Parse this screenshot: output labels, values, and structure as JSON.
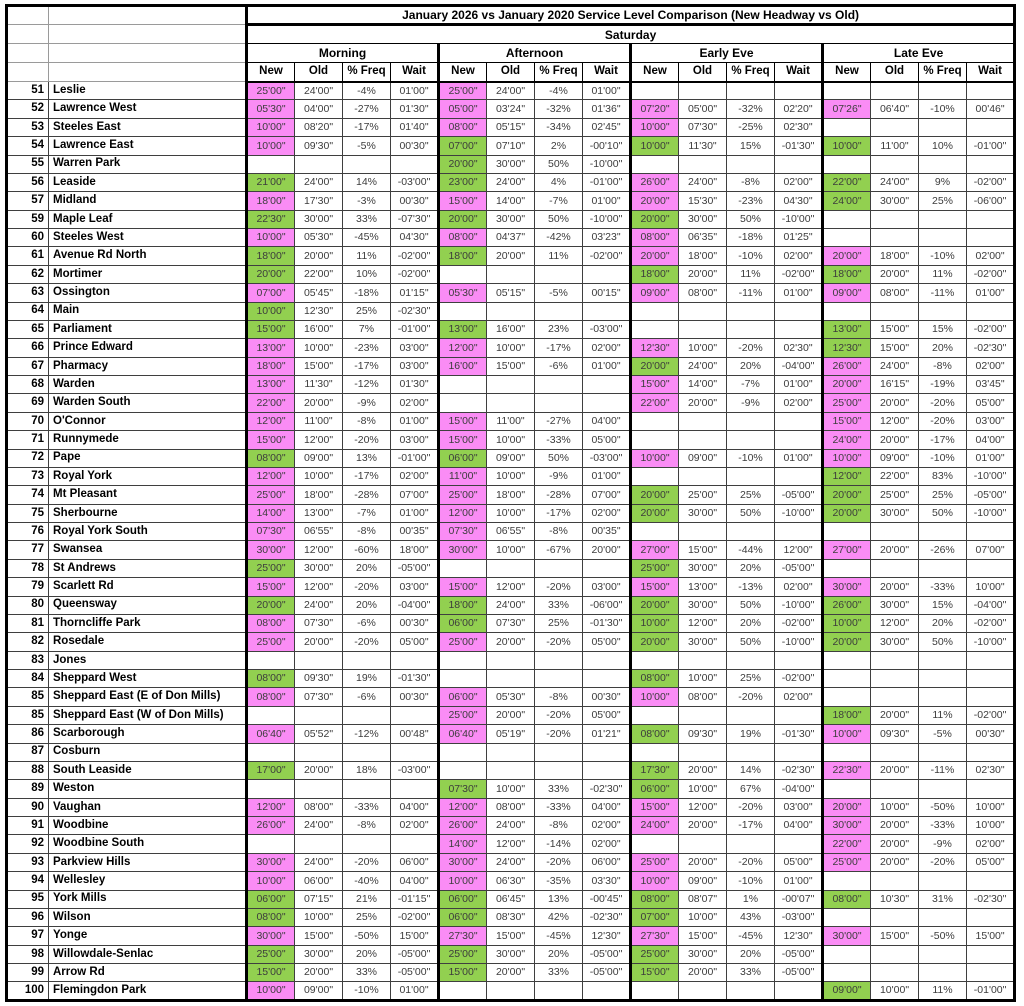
{
  "title": "January 2026 vs January 2020 Service Level Comparison (New Headway vs Old)",
  "day": "Saturday",
  "periods": [
    "Morning",
    "Afternoon",
    "Early Eve",
    "Late Eve"
  ],
  "metric_headers": [
    "New",
    "Old",
    "% Freq",
    "Wait"
  ],
  "colors": {
    "headway_worse_fill": "#FA8CF5",
    "headway_better_fill": "#92D050"
  },
  "rows": [
    {
      "route": "51",
      "name": "Leslie",
      "cells": [
        "25'00\"",
        "24'00\"",
        "-4%",
        "01'00\"",
        "25'00\"",
        "24'00\"",
        "-4%",
        "01'00\"",
        "",
        "",
        "",
        "",
        "",
        "",
        "",
        ""
      ]
    },
    {
      "route": "52",
      "name": "Lawrence West",
      "cells": [
        "05'30\"",
        "04'00\"",
        "-27%",
        "01'30\"",
        "05'00\"",
        "03'24\"",
        "-32%",
        "01'36\"",
        "07'20\"",
        "05'00\"",
        "-32%",
        "02'20\"",
        "07'26\"",
        "06'40\"",
        "-10%",
        "00'46\""
      ]
    },
    {
      "route": "53",
      "name": "Steeles East",
      "cells": [
        "10'00\"",
        "08'20\"",
        "-17%",
        "01'40\"",
        "08'00\"",
        "05'15\"",
        "-34%",
        "02'45\"",
        "10'00\"",
        "07'30\"",
        "-25%",
        "02'30\"",
        "",
        "",
        "",
        ""
      ]
    },
    {
      "route": "54",
      "name": "Lawrence East",
      "cells": [
        "10'00\"",
        "09'30\"",
        "-5%",
        "00'30\"",
        "07'00\"",
        "07'10\"",
        "2%",
        "-00'10\"",
        "10'00\"",
        "11'30\"",
        "15%",
        "-01'30\"",
        "10'00\"",
        "11'00\"",
        "10%",
        "-01'00\""
      ]
    },
    {
      "route": "55",
      "name": "Warren Park",
      "cells": [
        "",
        "",
        "",
        "",
        "20'00\"",
        "30'00\"",
        "50%",
        "-10'00\"",
        "",
        "",
        "",
        "",
        "",
        "",
        "",
        ""
      ]
    },
    {
      "route": "56",
      "name": "Leaside",
      "cells": [
        "21'00\"",
        "24'00\"",
        "14%",
        "-03'00\"",
        "23'00\"",
        "24'00\"",
        "4%",
        "-01'00\"",
        "26'00\"",
        "24'00\"",
        "-8%",
        "02'00\"",
        "22'00\"",
        "24'00\"",
        "9%",
        "-02'00\""
      ]
    },
    {
      "route": "57",
      "name": "Midland",
      "cells": [
        "18'00\"",
        "17'30\"",
        "-3%",
        "00'30\"",
        "15'00\"",
        "14'00\"",
        "-7%",
        "01'00\"",
        "20'00\"",
        "15'30\"",
        "-23%",
        "04'30\"",
        "24'00\"",
        "30'00\"",
        "25%",
        "-06'00\""
      ]
    },
    {
      "route": "59",
      "name": "Maple Leaf",
      "cells": [
        "22'30\"",
        "30'00\"",
        "33%",
        "-07'30\"",
        "20'00\"",
        "30'00\"",
        "50%",
        "-10'00\"",
        "20'00\"",
        "30'00\"",
        "50%",
        "-10'00\"",
        "",
        "",
        "",
        ""
      ]
    },
    {
      "route": "60",
      "name": "Steeles West",
      "cells": [
        "10'00\"",
        "05'30\"",
        "-45%",
        "04'30\"",
        "08'00\"",
        "04'37\"",
        "-42%",
        "03'23\"",
        "08'00\"",
        "06'35\"",
        "-18%",
        "01'25\"",
        "",
        "",
        "",
        ""
      ]
    },
    {
      "route": "61",
      "name": "Avenue Rd North",
      "cells": [
        "18'00\"",
        "20'00\"",
        "11%",
        "-02'00\"",
        "18'00\"",
        "20'00\"",
        "11%",
        "-02'00\"",
        "20'00\"",
        "18'00\"",
        "-10%",
        "02'00\"",
        "20'00\"",
        "18'00\"",
        "-10%",
        "02'00\""
      ]
    },
    {
      "route": "62",
      "name": "Mortimer",
      "cells": [
        "20'00\"",
        "22'00\"",
        "10%",
        "-02'00\"",
        "",
        "",
        "",
        "",
        "18'00\"",
        "20'00\"",
        "11%",
        "-02'00\"",
        "18'00\"",
        "20'00\"",
        "11%",
        "-02'00\""
      ]
    },
    {
      "route": "63",
      "name": "Ossington",
      "cells": [
        "07'00\"",
        "05'45\"",
        "-18%",
        "01'15\"",
        "05'30\"",
        "05'15\"",
        "-5%",
        "00'15\"",
        "09'00\"",
        "08'00\"",
        "-11%",
        "01'00\"",
        "09'00\"",
        "08'00\"",
        "-11%",
        "01'00\""
      ]
    },
    {
      "route": "64",
      "name": "Main",
      "cells": [
        "10'00\"",
        "12'30\"",
        "25%",
        "-02'30\"",
        "",
        "",
        "",
        "",
        "",
        "",
        "",
        "",
        "",
        "",
        "",
        ""
      ]
    },
    {
      "route": "65",
      "name": "Parliament",
      "cells": [
        "15'00\"",
        "16'00\"",
        "7%",
        "-01'00\"",
        "13'00\"",
        "16'00\"",
        "23%",
        "-03'00\"",
        "",
        "",
        "",
        "",
        "13'00\"",
        "15'00\"",
        "15%",
        "-02'00\""
      ]
    },
    {
      "route": "66",
      "name": "Prince Edward",
      "cells": [
        "13'00\"",
        "10'00\"",
        "-23%",
        "03'00\"",
        "12'00\"",
        "10'00\"",
        "-17%",
        "02'00\"",
        "12'30\"",
        "10'00\"",
        "-20%",
        "02'30\"",
        "12'30\"",
        "15'00\"",
        "20%",
        "-02'30\""
      ]
    },
    {
      "route": "67",
      "name": "Pharmacy",
      "cells": [
        "18'00\"",
        "15'00\"",
        "-17%",
        "03'00\"",
        "16'00\"",
        "15'00\"",
        "-6%",
        "01'00\"",
        "20'00\"",
        "24'00\"",
        "20%",
        "-04'00\"",
        "26'00\"",
        "24'00\"",
        "-8%",
        "02'00\""
      ]
    },
    {
      "route": "68",
      "name": "Warden",
      "cells": [
        "13'00\"",
        "11'30\"",
        "-12%",
        "01'30\"",
        "",
        "",
        "",
        "",
        "15'00\"",
        "14'00\"",
        "-7%",
        "01'00\"",
        "20'00\"",
        "16'15\"",
        "-19%",
        "03'45\""
      ]
    },
    {
      "route": "69",
      "name": "Warden South",
      "cells": [
        "22'00\"",
        "20'00\"",
        "-9%",
        "02'00\"",
        "",
        "",
        "",
        "",
        "22'00\"",
        "20'00\"",
        "-9%",
        "02'00\"",
        "25'00\"",
        "20'00\"",
        "-20%",
        "05'00\""
      ]
    },
    {
      "route": "70",
      "name": "O'Connor",
      "cells": [
        "12'00\"",
        "11'00\"",
        "-8%",
        "01'00\"",
        "15'00\"",
        "11'00\"",
        "-27%",
        "04'00\"",
        "",
        "",
        "",
        "",
        "15'00\"",
        "12'00\"",
        "-20%",
        "03'00\""
      ]
    },
    {
      "route": "71",
      "name": "Runnymede",
      "cells": [
        "15'00\"",
        "12'00\"",
        "-20%",
        "03'00\"",
        "15'00\"",
        "10'00\"",
        "-33%",
        "05'00\"",
        "",
        "",
        "",
        "",
        "24'00\"",
        "20'00\"",
        "-17%",
        "04'00\""
      ]
    },
    {
      "route": "72",
      "name": "Pape",
      "cells": [
        "08'00\"",
        "09'00\"",
        "13%",
        "-01'00\"",
        "06'00\"",
        "09'00\"",
        "50%",
        "-03'00\"",
        "10'00\"",
        "09'00\"",
        "-10%",
        "01'00\"",
        "10'00\"",
        "09'00\"",
        "-10%",
        "01'00\""
      ]
    },
    {
      "route": "73",
      "name": "Royal York",
      "cells": [
        "12'00\"",
        "10'00\"",
        "-17%",
        "02'00\"",
        "11'00\"",
        "10'00\"",
        "-9%",
        "01'00\"",
        "",
        "",
        "",
        "",
        "12'00\"",
        "22'00\"",
        "83%",
        "-10'00\""
      ]
    },
    {
      "route": "74",
      "name": "Mt Pleasant",
      "cells": [
        "25'00\"",
        "18'00\"",
        "-28%",
        "07'00\"",
        "25'00\"",
        "18'00\"",
        "-28%",
        "07'00\"",
        "20'00\"",
        "25'00\"",
        "25%",
        "-05'00\"",
        "20'00\"",
        "25'00\"",
        "25%",
        "-05'00\""
      ]
    },
    {
      "route": "75",
      "name": "Sherbourne",
      "cells": [
        "14'00\"",
        "13'00\"",
        "-7%",
        "01'00\"",
        "12'00\"",
        "10'00\"",
        "-17%",
        "02'00\"",
        "20'00\"",
        "30'00\"",
        "50%",
        "-10'00\"",
        "20'00\"",
        "30'00\"",
        "50%",
        "-10'00\""
      ]
    },
    {
      "route": "76",
      "name": "Royal York South",
      "cells": [
        "07'30\"",
        "06'55\"",
        "-8%",
        "00'35\"",
        "07'30\"",
        "06'55\"",
        "-8%",
        "00'35\"",
        "",
        "",
        "",
        "",
        "",
        "",
        "",
        ""
      ]
    },
    {
      "route": "77",
      "name": "Swansea",
      "cells": [
        "30'00\"",
        "12'00\"",
        "-60%",
        "18'00\"",
        "30'00\"",
        "10'00\"",
        "-67%",
        "20'00\"",
        "27'00\"",
        "15'00\"",
        "-44%",
        "12'00\"",
        "27'00\"",
        "20'00\"",
        "-26%",
        "07'00\""
      ]
    },
    {
      "route": "78",
      "name": "St Andrews",
      "cells": [
        "25'00\"",
        "30'00\"",
        "20%",
        "-05'00\"",
        "",
        "",
        "",
        "",
        "25'00\"",
        "30'00\"",
        "20%",
        "-05'00\"",
        "",
        "",
        "",
        ""
      ]
    },
    {
      "route": "79",
      "name": "Scarlett Rd",
      "cells": [
        "15'00\"",
        "12'00\"",
        "-20%",
        "03'00\"",
        "15'00\"",
        "12'00\"",
        "-20%",
        "03'00\"",
        "15'00\"",
        "13'00\"",
        "-13%",
        "02'00\"",
        "30'00\"",
        "20'00\"",
        "-33%",
        "10'00\""
      ]
    },
    {
      "route": "80",
      "name": "Queensway",
      "cells": [
        "20'00\"",
        "24'00\"",
        "20%",
        "-04'00\"",
        "18'00\"",
        "24'00\"",
        "33%",
        "-06'00\"",
        "20'00\"",
        "30'00\"",
        "50%",
        "-10'00\"",
        "26'00\"",
        "30'00\"",
        "15%",
        "-04'00\""
      ]
    },
    {
      "route": "81",
      "name": "Thorncliffe Park",
      "cells": [
        "08'00\"",
        "07'30\"",
        "-6%",
        "00'30\"",
        "06'00\"",
        "07'30\"",
        "25%",
        "-01'30\"",
        "10'00\"",
        "12'00\"",
        "20%",
        "-02'00\"",
        "10'00\"",
        "12'00\"",
        "20%",
        "-02'00\""
      ]
    },
    {
      "route": "82",
      "name": "Rosedale",
      "cells": [
        "25'00\"",
        "20'00\"",
        "-20%",
        "05'00\"",
        "25'00\"",
        "20'00\"",
        "-20%",
        "05'00\"",
        "20'00\"",
        "30'00\"",
        "50%",
        "-10'00\"",
        "20'00\"",
        "30'00\"",
        "50%",
        "-10'00\""
      ]
    },
    {
      "route": "83",
      "name": "Jones",
      "cells": [
        "",
        "",
        "",
        "",
        "",
        "",
        "",
        "",
        "",
        "",
        "",
        "",
        "",
        "",
        "",
        ""
      ]
    },
    {
      "route": "84",
      "name": "Sheppard West",
      "cells": [
        "08'00\"",
        "09'30\"",
        "19%",
        "-01'30\"",
        "",
        "",
        "",
        "",
        "08'00\"",
        "10'00\"",
        "25%",
        "-02'00\"",
        "",
        "",
        "",
        ""
      ]
    },
    {
      "route": "85",
      "name": "Sheppard East (E of Don Mills)",
      "cells": [
        "08'00\"",
        "07'30\"",
        "-6%",
        "00'30\"",
        "06'00\"",
        "05'30\"",
        "-8%",
        "00'30\"",
        "10'00\"",
        "08'00\"",
        "-20%",
        "02'00\"",
        "",
        "",
        "",
        ""
      ]
    },
    {
      "route": "85",
      "name": "Sheppard East (W of Don Mills)",
      "cells": [
        "",
        "",
        "",
        "",
        "25'00\"",
        "20'00\"",
        "-20%",
        "05'00\"",
        "",
        "",
        "",
        "",
        "18'00\"",
        "20'00\"",
        "11%",
        "-02'00\""
      ]
    },
    {
      "route": "86",
      "name": "Scarborough",
      "cells": [
        "06'40\"",
        "05'52\"",
        "-12%",
        "00'48\"",
        "06'40\"",
        "05'19\"",
        "-20%",
        "01'21\"",
        "08'00\"",
        "09'30\"",
        "19%",
        "-01'30\"",
        "10'00\"",
        "09'30\"",
        "-5%",
        "00'30\""
      ]
    },
    {
      "route": "87",
      "name": "Cosburn",
      "cells": [
        "",
        "",
        "",
        "",
        "",
        "",
        "",
        "",
        "",
        "",
        "",
        "",
        "",
        "",
        "",
        ""
      ]
    },
    {
      "route": "88",
      "name": "South Leaside",
      "cells": [
        "17'00\"",
        "20'00\"",
        "18%",
        "-03'00\"",
        "",
        "",
        "",
        "",
        "17'30\"",
        "20'00\"",
        "14%",
        "-02'30\"",
        "22'30\"",
        "20'00\"",
        "-11%",
        "02'30\""
      ]
    },
    {
      "route": "89",
      "name": "Weston",
      "cells": [
        "",
        "",
        "",
        "",
        "07'30\"",
        "10'00\"",
        "33%",
        "-02'30\"",
        "06'00\"",
        "10'00\"",
        "67%",
        "-04'00\"",
        "",
        "",
        "",
        ""
      ]
    },
    {
      "route": "90",
      "name": "Vaughan",
      "cells": [
        "12'00\"",
        "08'00\"",
        "-33%",
        "04'00\"",
        "12'00\"",
        "08'00\"",
        "-33%",
        "04'00\"",
        "15'00\"",
        "12'00\"",
        "-20%",
        "03'00\"",
        "20'00\"",
        "10'00\"",
        "-50%",
        "10'00\""
      ]
    },
    {
      "route": "91",
      "name": "Woodbine",
      "cells": [
        "26'00\"",
        "24'00\"",
        "-8%",
        "02'00\"",
        "26'00\"",
        "24'00\"",
        "-8%",
        "02'00\"",
        "24'00\"",
        "20'00\"",
        "-17%",
        "04'00\"",
        "30'00\"",
        "20'00\"",
        "-33%",
        "10'00\""
      ]
    },
    {
      "route": "92",
      "name": "Woodbine South",
      "cells": [
        "",
        "",
        "",
        "",
        "14'00\"",
        "12'00\"",
        "-14%",
        "02'00\"",
        "",
        "",
        "",
        "",
        "22'00\"",
        "20'00\"",
        "-9%",
        "02'00\""
      ]
    },
    {
      "route": "93",
      "name": "Parkview Hills",
      "cells": [
        "30'00\"",
        "24'00\"",
        "-20%",
        "06'00\"",
        "30'00\"",
        "24'00\"",
        "-20%",
        "06'00\"",
        "25'00\"",
        "20'00\"",
        "-20%",
        "05'00\"",
        "25'00\"",
        "20'00\"",
        "-20%",
        "05'00\""
      ]
    },
    {
      "route": "94",
      "name": "Wellesley",
      "cells": [
        "10'00\"",
        "06'00\"",
        "-40%",
        "04'00\"",
        "10'00\"",
        "06'30\"",
        "-35%",
        "03'30\"",
        "10'00\"",
        "09'00\"",
        "-10%",
        "01'00\"",
        "",
        "",
        "",
        ""
      ]
    },
    {
      "route": "95",
      "name": "York Mills",
      "cells": [
        "06'00\"",
        "07'15\"",
        "21%",
        "-01'15\"",
        "06'00\"",
        "06'45\"",
        "13%",
        "-00'45\"",
        "08'00\"",
        "08'07\"",
        "1%",
        "-00'07\"",
        "08'00\"",
        "10'30\"",
        "31%",
        "-02'30\""
      ]
    },
    {
      "route": "96",
      "name": "Wilson",
      "cells": [
        "08'00\"",
        "10'00\"",
        "25%",
        "-02'00\"",
        "06'00\"",
        "08'30\"",
        "42%",
        "-02'30\"",
        "07'00\"",
        "10'00\"",
        "43%",
        "-03'00\"",
        "",
        "",
        "",
        ""
      ]
    },
    {
      "route": "97",
      "name": "Yonge",
      "cells": [
        "30'00\"",
        "15'00\"",
        "-50%",
        "15'00\"",
        "27'30\"",
        "15'00\"",
        "-45%",
        "12'30\"",
        "27'30\"",
        "15'00\"",
        "-45%",
        "12'30\"",
        "30'00\"",
        "15'00\"",
        "-50%",
        "15'00\""
      ]
    },
    {
      "route": "98",
      "name": "Willowdale-Senlac",
      "cells": [
        "25'00\"",
        "30'00\"",
        "20%",
        "-05'00\"",
        "25'00\"",
        "30'00\"",
        "20%",
        "-05'00\"",
        "25'00\"",
        "30'00\"",
        "20%",
        "-05'00\"",
        "",
        "",
        "",
        ""
      ]
    },
    {
      "route": "99",
      "name": "Arrow Rd",
      "cells": [
        "15'00\"",
        "20'00\"",
        "33%",
        "-05'00\"",
        "15'00\"",
        "20'00\"",
        "33%",
        "-05'00\"",
        "15'00\"",
        "20'00\"",
        "33%",
        "-05'00\"",
        "",
        "",
        "",
        ""
      ]
    },
    {
      "route": "100",
      "name": "Flemingdon Park",
      "cells": [
        "10'00\"",
        "09'00\"",
        "-10%",
        "01'00\"",
        "",
        "",
        "",
        "",
        "",
        "",
        "",
        "",
        "09'00\"",
        "10'00\"",
        "11%",
        "-01'00\""
      ]
    }
  ]
}
